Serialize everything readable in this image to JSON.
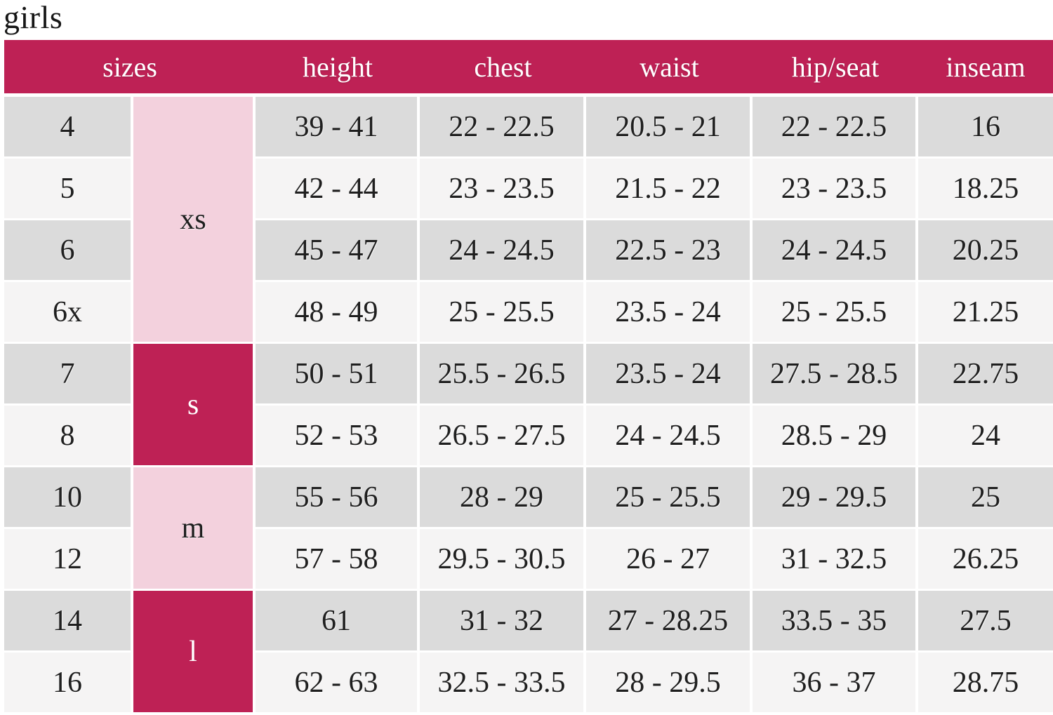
{
  "page_title": "girls",
  "colors": {
    "accent_magenta": "#be2155",
    "group_light_pink": "#f3d1dd",
    "row_gray": "#dbdbdb",
    "row_light": "#f5f4f4",
    "header_text": "#ffffff",
    "body_text": "#1f1f1f"
  },
  "chart_data": {
    "type": "table",
    "title": "girls",
    "columns": [
      "sizes",
      "height",
      "chest",
      "waist",
      "hip/seat",
      "inseam"
    ],
    "size_groups": [
      {
        "label": "xs",
        "span": 4,
        "tone": "light"
      },
      {
        "label": "s",
        "span": 2,
        "tone": "dark"
      },
      {
        "label": "m",
        "span": 2,
        "tone": "light"
      },
      {
        "label": "l",
        "span": 2,
        "tone": "dark"
      }
    ],
    "rows": [
      {
        "size": "4",
        "height": "39 - 41",
        "chest": "22 - 22.5",
        "waist": "20.5 - 21",
        "hip_seat": "22 - 22.5",
        "inseam": "16"
      },
      {
        "size": "5",
        "height": "42 - 44",
        "chest": "23 - 23.5",
        "waist": "21.5 - 22",
        "hip_seat": "23 - 23.5",
        "inseam": "18.25"
      },
      {
        "size": "6",
        "height": "45 - 47",
        "chest": "24 - 24.5",
        "waist": "22.5 - 23",
        "hip_seat": "24 - 24.5",
        "inseam": "20.25"
      },
      {
        "size": "6x",
        "height": "48 - 49",
        "chest": "25 - 25.5",
        "waist": "23.5 - 24",
        "hip_seat": "25 - 25.5",
        "inseam": "21.25"
      },
      {
        "size": "7",
        "height": "50 - 51",
        "chest": "25.5 - 26.5",
        "waist": "23.5 - 24",
        "hip_seat": "27.5 - 28.5",
        "inseam": "22.75"
      },
      {
        "size": "8",
        "height": "52 - 53",
        "chest": "26.5 - 27.5",
        "waist": "24 - 24.5",
        "hip_seat": "28.5 - 29",
        "inseam": "24"
      },
      {
        "size": "10",
        "height": "55 - 56",
        "chest": "28 - 29",
        "waist": "25 - 25.5",
        "hip_seat": "29 - 29.5",
        "inseam": "25"
      },
      {
        "size": "12",
        "height": "57 - 58",
        "chest": "29.5 - 30.5",
        "waist": "26 - 27",
        "hip_seat": "31 - 32.5",
        "inseam": "26.25"
      },
      {
        "size": "14",
        "height": "61",
        "chest": "31 - 32",
        "waist": "27 - 28.25",
        "hip_seat": "33.5 - 35",
        "inseam": "27.5"
      },
      {
        "size": "16",
        "height": "62 - 63",
        "chest": "32.5 - 33.5",
        "waist": "28 - 29.5",
        "hip_seat": "36 - 37",
        "inseam": "28.75"
      }
    ]
  }
}
